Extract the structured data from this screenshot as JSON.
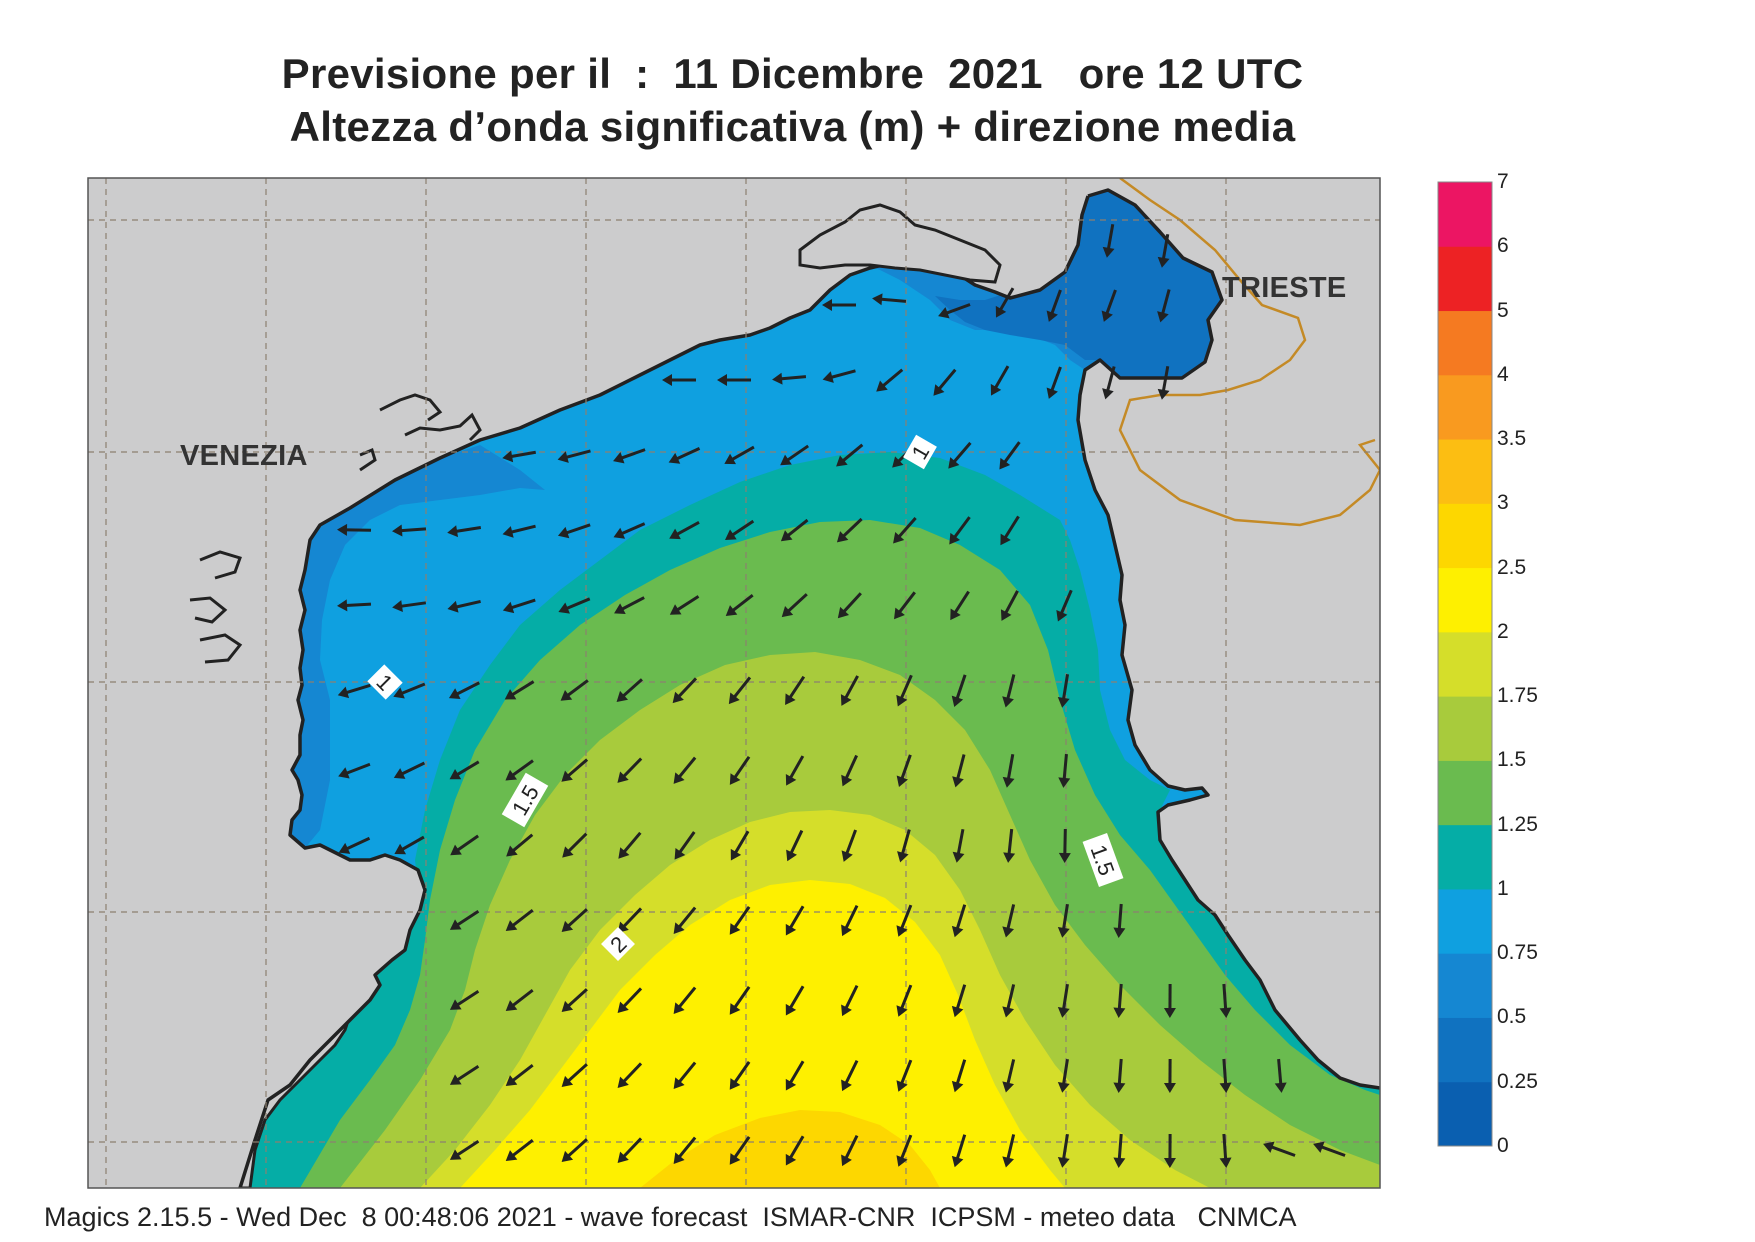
{
  "title": {
    "line1": "Previsione per il  :  11 Dicembre  2021   ore 12 UTC",
    "line2": "Altezza d’onda significativa (m) + direzione media"
  },
  "footer": "Magics 2.15.5 - Wed Dec  8 00:48:06 2021 - wave forecast  ISMAR-CNR  ICPSM - meteo data   CNMCA",
  "places": {
    "venezia": "VENEZIA",
    "trieste": "TRIESTE"
  },
  "legend": {
    "labels": [
      "0",
      "0.25",
      "0.5",
      "0.75",
      "1",
      "1.25",
      "1.5",
      "1.75",
      "2",
      "2.5",
      "3",
      "3.5",
      "4",
      "5",
      "6",
      "7"
    ],
    "colors": [
      "#0a5fb0",
      "#1072c0",
      "#1587d2",
      "#0fa0e0",
      "#05ada6",
      "#6abb4f",
      "#a8cb3c",
      "#d5de2a",
      "#fef000",
      "#fdd700",
      "#fcbe12",
      "#f99a1f",
      "#f57a21",
      "#ed2224",
      "#ec1563"
    ]
  },
  "contour_labels": [
    "1",
    "1",
    "1.5",
    "1.5",
    "2"
  ],
  "colors": {
    "land": "#cccccd",
    "coastline": "#222222",
    "border": "#c48a26",
    "grid": "#8c8070"
  },
  "arrows": {
    "direction": "mostly toward south-west in the centre, west near the Venetian coast, south toward the southern edge"
  }
}
